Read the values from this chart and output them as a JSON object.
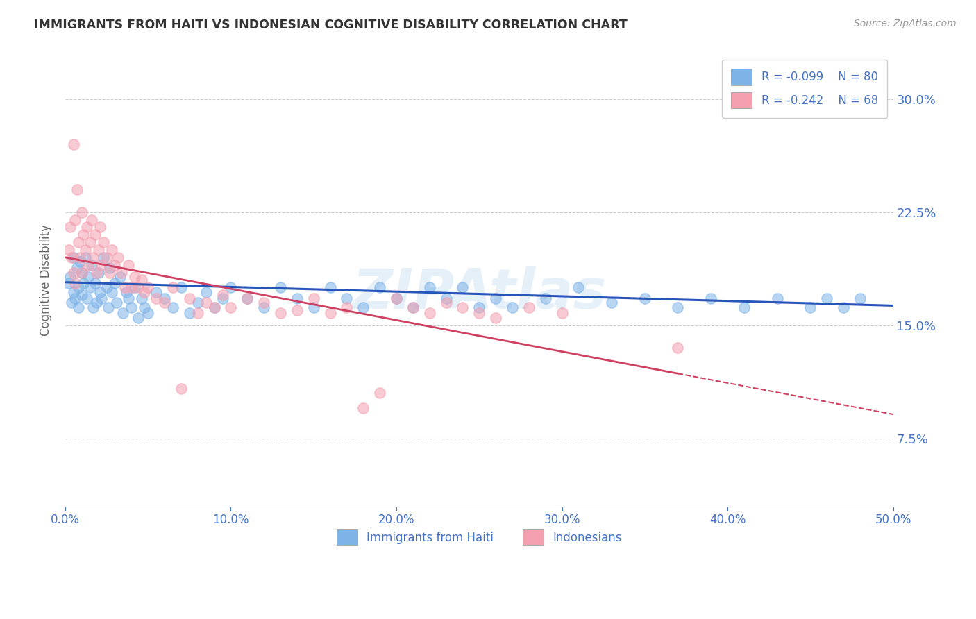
{
  "title": "IMMIGRANTS FROM HAITI VS INDONESIAN COGNITIVE DISABILITY CORRELATION CHART",
  "source": "Source: ZipAtlas.com",
  "ylabel": "Cognitive Disability",
  "xlim": [
    0.0,
    0.5
  ],
  "ylim": [
    0.03,
    0.33
  ],
  "yticks": [
    0.075,
    0.15,
    0.225,
    0.3
  ],
  "ytick_labels": [
    "7.5%",
    "15.0%",
    "22.5%",
    "30.0%"
  ],
  "xticks": [
    0.0,
    0.1,
    0.2,
    0.3,
    0.4,
    0.5
  ],
  "xtick_labels": [
    "0.0%",
    "10.0%",
    "20.0%",
    "30.0%",
    "40.0%",
    "50.0%"
  ],
  "haiti_R": -0.099,
  "haiti_N": 80,
  "indonesian_R": -0.242,
  "indonesian_N": 68,
  "haiti_color": "#7EB3E8",
  "indonesian_color": "#F4A0B0",
  "haiti_line_color": "#2855B8",
  "indonesian_line_color": "#D04060",
  "background_color": "#FFFFFF",
  "grid_color": "#CCCCCC",
  "title_color": "#333333",
  "tick_color": "#4472C4",
  "watermark": "ZIPAtlas",
  "legend_label_haiti": "Immigrants from Haiti",
  "legend_label_indonesian": "Indonesians",
  "haiti_scatter_x": [
    0.002,
    0.003,
    0.004,
    0.005,
    0.005,
    0.006,
    0.007,
    0.008,
    0.008,
    0.009,
    0.01,
    0.01,
    0.011,
    0.012,
    0.013,
    0.014,
    0.015,
    0.016,
    0.017,
    0.018,
    0.019,
    0.02,
    0.021,
    0.022,
    0.023,
    0.025,
    0.026,
    0.027,
    0.028,
    0.03,
    0.031,
    0.033,
    0.035,
    0.037,
    0.038,
    0.04,
    0.042,
    0.044,
    0.046,
    0.048,
    0.05,
    0.055,
    0.06,
    0.065,
    0.07,
    0.075,
    0.08,
    0.085,
    0.09,
    0.095,
    0.1,
    0.11,
    0.12,
    0.13,
    0.14,
    0.15,
    0.16,
    0.17,
    0.18,
    0.19,
    0.2,
    0.21,
    0.22,
    0.23,
    0.24,
    0.25,
    0.26,
    0.27,
    0.29,
    0.31,
    0.33,
    0.35,
    0.37,
    0.39,
    0.41,
    0.43,
    0.45,
    0.46,
    0.47,
    0.48
  ],
  "haiti_scatter_y": [
    0.178,
    0.182,
    0.165,
    0.195,
    0.172,
    0.168,
    0.188,
    0.175,
    0.162,
    0.192,
    0.185,
    0.17,
    0.178,
    0.195,
    0.168,
    0.182,
    0.175,
    0.19,
    0.162,
    0.178,
    0.165,
    0.185,
    0.172,
    0.168,
    0.195,
    0.175,
    0.162,
    0.188,
    0.172,
    0.178,
    0.165,
    0.182,
    0.158,
    0.172,
    0.168,
    0.162,
    0.175,
    0.155,
    0.168,
    0.162,
    0.158,
    0.172,
    0.168,
    0.162,
    0.175,
    0.158,
    0.165,
    0.172,
    0.162,
    0.168,
    0.175,
    0.168,
    0.162,
    0.175,
    0.168,
    0.162,
    0.175,
    0.168,
    0.162,
    0.175,
    0.168,
    0.162,
    0.175,
    0.168,
    0.175,
    0.162,
    0.168,
    0.162,
    0.168,
    0.175,
    0.165,
    0.168,
    0.162,
    0.168,
    0.162,
    0.168,
    0.162,
    0.168,
    0.162,
    0.168
  ],
  "indonesian_scatter_x": [
    0.002,
    0.003,
    0.004,
    0.005,
    0.005,
    0.006,
    0.006,
    0.007,
    0.008,
    0.009,
    0.01,
    0.01,
    0.011,
    0.012,
    0.013,
    0.014,
    0.015,
    0.016,
    0.017,
    0.018,
    0.019,
    0.02,
    0.021,
    0.022,
    0.023,
    0.025,
    0.027,
    0.028,
    0.03,
    0.032,
    0.034,
    0.036,
    0.038,
    0.04,
    0.042,
    0.044,
    0.046,
    0.048,
    0.05,
    0.055,
    0.06,
    0.065,
    0.07,
    0.075,
    0.08,
    0.085,
    0.09,
    0.095,
    0.1,
    0.11,
    0.12,
    0.13,
    0.14,
    0.15,
    0.16,
    0.17,
    0.18,
    0.19,
    0.2,
    0.21,
    0.22,
    0.23,
    0.24,
    0.25,
    0.26,
    0.28,
    0.3,
    0.37
  ],
  "indonesian_scatter_y": [
    0.2,
    0.215,
    0.195,
    0.27,
    0.185,
    0.22,
    0.178,
    0.24,
    0.205,
    0.195,
    0.225,
    0.185,
    0.21,
    0.2,
    0.215,
    0.19,
    0.205,
    0.22,
    0.195,
    0.21,
    0.185,
    0.2,
    0.215,
    0.19,
    0.205,
    0.195,
    0.185,
    0.2,
    0.19,
    0.195,
    0.185,
    0.175,
    0.19,
    0.175,
    0.182,
    0.175,
    0.18,
    0.172,
    0.175,
    0.168,
    0.165,
    0.175,
    0.108,
    0.168,
    0.158,
    0.165,
    0.162,
    0.17,
    0.162,
    0.168,
    0.165,
    0.158,
    0.16,
    0.168,
    0.158,
    0.162,
    0.095,
    0.105,
    0.168,
    0.162,
    0.158,
    0.165,
    0.162,
    0.158,
    0.155,
    0.162,
    0.158,
    0.135
  ],
  "indo_line_solid_end": 0.37,
  "haiti_line_start_y": 0.1785,
  "haiti_line_end_y": 0.163,
  "indo_line_start_y": 0.195,
  "indo_line_end_y": 0.118
}
